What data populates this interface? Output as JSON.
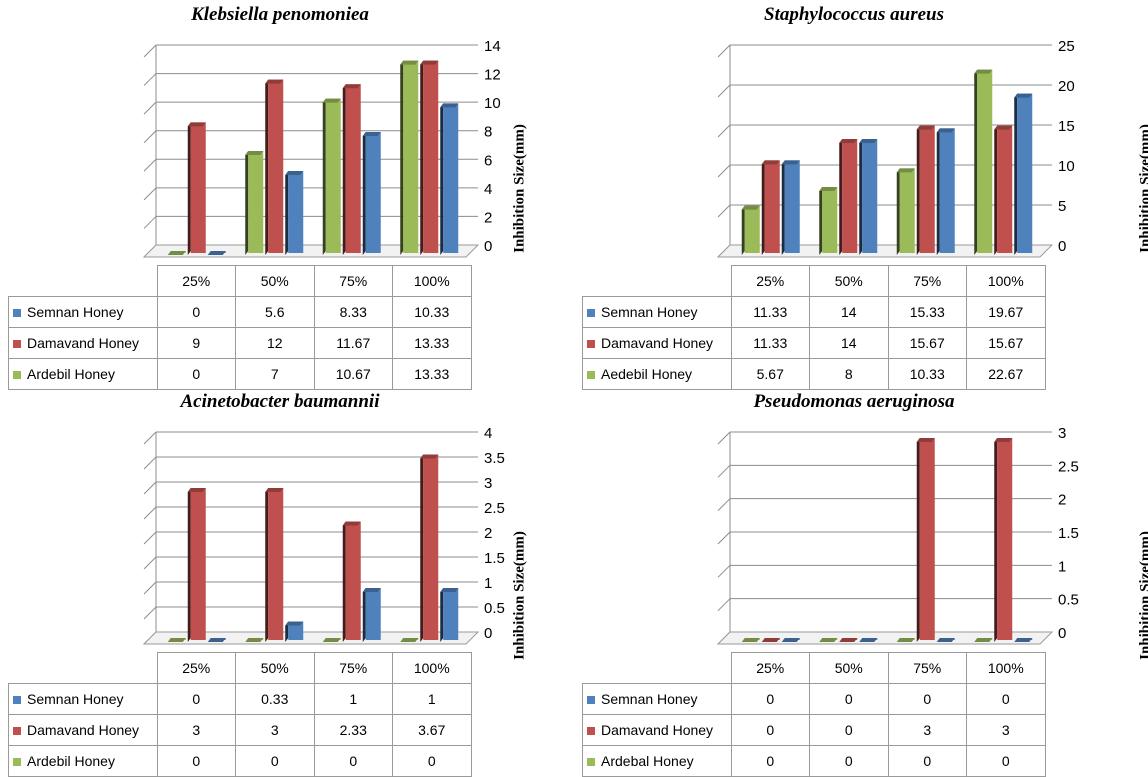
{
  "colors": {
    "semnan": "#4F81BD",
    "damavand": "#C0504D",
    "ardebil": "#9BBB59"
  },
  "chart_data": [
    {
      "type": "bar",
      "title": "Klebsiella penomoniea",
      "ylabel": "Inhibition Size(mm)",
      "categories": [
        "25%",
        "50%",
        "75%",
        "100%"
      ],
      "ylim": [
        0,
        14
      ],
      "yticks": [
        "0",
        "2",
        "4",
        "6",
        "8",
        "10",
        "12",
        "14"
      ],
      "series": [
        {
          "name": "Semnan Honey",
          "values": [
            0,
            5.6,
            8.33,
            10.33
          ],
          "labels": [
            "0",
            "5.6",
            "8.33",
            "10.33"
          ]
        },
        {
          "name": "Damavand Honey",
          "values": [
            9,
            12,
            11.67,
            13.33
          ],
          "labels": [
            "9",
            "12",
            "11.67",
            "13.33"
          ]
        },
        {
          "name": "Ardebil Honey",
          "values": [
            0,
            7,
            10.67,
            13.33
          ],
          "labels": [
            "0",
            "7",
            "10.67",
            "13.33"
          ]
        }
      ]
    },
    {
      "type": "bar",
      "title": "Staphylococcus aureus",
      "ylabel": "Inhibition Size(mm)",
      "categories": [
        "25%",
        "50%",
        "75%",
        "100%"
      ],
      "ylim": [
        0,
        25
      ],
      "yticks": [
        "0",
        "5",
        "10",
        "15",
        "20",
        "25"
      ],
      "series": [
        {
          "name": "Semnan Honey",
          "values": [
            11.33,
            14,
            15.33,
            19.67
          ],
          "labels": [
            "11.33",
            "14",
            "15.33",
            "19.67"
          ]
        },
        {
          "name": "Damavand Honey",
          "values": [
            11.33,
            14,
            15.67,
            15.67
          ],
          "labels": [
            "11.33",
            "14",
            "15.67",
            "15.67"
          ]
        },
        {
          "name": "Aedebil Honey",
          "values": [
            5.67,
            8,
            10.33,
            22.67
          ],
          "labels": [
            "5.67",
            "8",
            "10.33",
            "22.67"
          ]
        }
      ]
    },
    {
      "type": "bar",
      "title": "Acinetobacter baumannii",
      "ylabel": "Inhibition Size(mm)",
      "categories": [
        "25%",
        "50%",
        "75%",
        "100%"
      ],
      "ylim": [
        0,
        4
      ],
      "yticks": [
        "0",
        "0.5",
        "1",
        "1.5",
        "2",
        "2.5",
        "3",
        "3.5",
        "4"
      ],
      "series": [
        {
          "name": "Semnan Honey",
          "values": [
            0,
            0.33,
            1,
            1
          ],
          "labels": [
            "0",
            "0.33",
            "1",
            "1"
          ]
        },
        {
          "name": "Damavand Honey",
          "values": [
            3,
            3,
            2.33,
            3.67
          ],
          "labels": [
            "3",
            "3",
            "2.33",
            "3.67"
          ]
        },
        {
          "name": "Ardebil Honey",
          "values": [
            0,
            0,
            0,
            0
          ],
          "labels": [
            "0",
            "0",
            "0",
            "0"
          ]
        }
      ]
    },
    {
      "type": "bar",
      "title": "Pseudomonas aeruginosa",
      "ylabel": "Inhibition Size(mm)",
      "categories": [
        "25%",
        "50%",
        "75%",
        "100%"
      ],
      "ylim": [
        0,
        3
      ],
      "yticks": [
        "0",
        "0.5",
        "1",
        "1.5",
        "2",
        "2.5",
        "3"
      ],
      "series": [
        {
          "name": "Semnan Honey",
          "values": [
            0,
            0,
            0,
            0
          ],
          "labels": [
            "0",
            "0",
            "0",
            "0"
          ]
        },
        {
          "name": "Damavand Honey",
          "values": [
            0,
            0,
            3,
            3
          ],
          "labels": [
            "0",
            "0",
            "3",
            "3"
          ]
        },
        {
          "name": "Ardebal Honey",
          "values": [
            0,
            0,
            0,
            0
          ],
          "labels": [
            "0",
            "0",
            "0",
            "0"
          ]
        }
      ]
    }
  ]
}
